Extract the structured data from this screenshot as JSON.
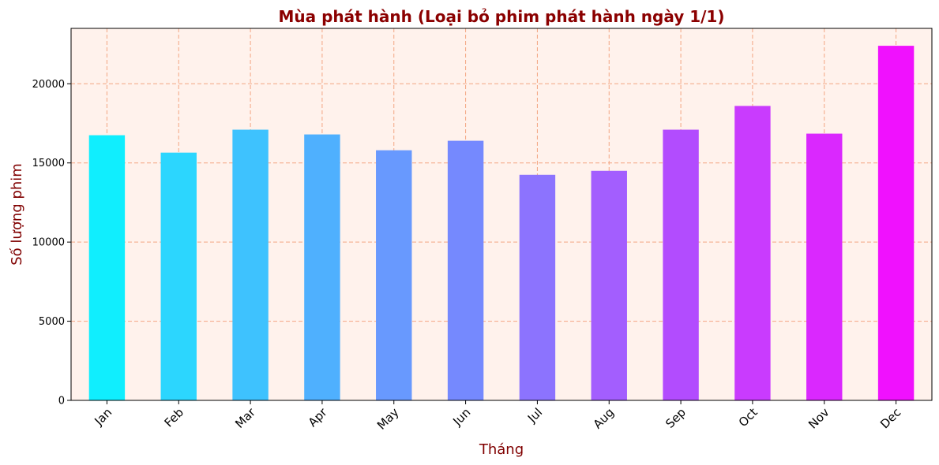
{
  "chart_data": {
    "type": "bar",
    "title": "Mùa phát hành (Loại bỏ phim phát hành ngày 1/1)",
    "xlabel": "Tháng",
    "ylabel": "Số lượng phim",
    "categories": [
      "Jan",
      "Feb",
      "Mar",
      "Apr",
      "May",
      "Jun",
      "Jul",
      "Aug",
      "Sep",
      "Oct",
      "Nov",
      "Dec"
    ],
    "values": [
      16750,
      15650,
      17100,
      16800,
      15800,
      16400,
      14250,
      14500,
      17100,
      18600,
      16850,
      22400
    ],
    "ylim": [
      0,
      23500
    ],
    "yticks": [
      "0",
      "5000",
      "10000",
      "15000",
      "20000"
    ],
    "ytick_values": [
      0,
      5000,
      10000,
      15000,
      20000
    ],
    "grid": true,
    "legend": "none",
    "x_tick_rotation_deg": 45,
    "colors": {
      "title": "#8b0000",
      "axis_label": "#800000",
      "plot_background": "#fff2ec",
      "grid": "#f4a582",
      "bars": [
        "#10eefe",
        "#2cd6fe",
        "#3ec2fe",
        "#4fb0fe",
        "#6899fe",
        "#7589fe",
        "#8c73fe",
        "#a35efe",
        "#b24cfe",
        "#c93bfe",
        "#da28fe",
        "#f011fe"
      ]
    }
  }
}
